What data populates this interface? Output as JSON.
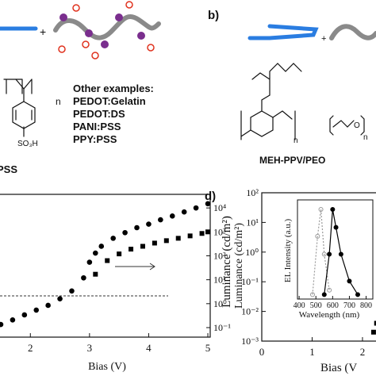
{
  "panel_a": {
    "n": "n",
    "substituent": "SO₃H",
    "name": "PSS",
    "examples_title": "Other examples:",
    "examples": [
      "PEDOT:Gelatin",
      "PEDOT:DS",
      "PANI:PSS",
      "PPY:PSS"
    ]
  },
  "panel_b": {
    "label": "b)",
    "n1": "n",
    "o1": "O",
    "n2": "n",
    "name": "MEH-PPV/PEO"
  },
  "panel_c": {
    "xlabel": "Bias (V)",
    "ylabel": "Luminance (cd/m²)",
    "xlim": [
      1.46,
      5.04
    ],
    "xticks": [
      2,
      3,
      4,
      5
    ],
    "ylim": [
      0.04,
      37000
    ],
    "log_y": true,
    "yticks": [
      {
        "value": 10000,
        "label": "10⁴"
      },
      {
        "value": 1000,
        "label": "10³"
      },
      {
        "value": 100,
        "label": "10²"
      },
      {
        "value": 10,
        "label": "10¹"
      },
      {
        "value": 1,
        "label": "10⁰"
      },
      {
        "value": 0.1,
        "label": "10⁻¹"
      }
    ],
    "series": [
      {
        "marker": "circle",
        "color": "#000000",
        "x": [
          1.5,
          1.7,
          1.9,
          2.1,
          2.3,
          2.5,
          2.7,
          2.9,
          3.0,
          3.1,
          3.2,
          3.4,
          3.6,
          3.8,
          4.0,
          4.2,
          4.4,
          4.6,
          4.8,
          5.0
        ],
        "values": [
          0.135,
          0.21,
          0.34,
          0.54,
          0.85,
          1.6,
          3.4,
          12,
          54,
          130,
          250,
          540,
          930,
          1500,
          2100,
          3200,
          4600,
          6800,
          10000,
          15000
        ]
      },
      {
        "marker": "square",
        "color": "#000000",
        "x": [
          3.1,
          3.3,
          3.5,
          3.7,
          3.9,
          4.1,
          4.3,
          4.5,
          4.7,
          4.9,
          5.0
        ],
        "values": [
          17,
          63,
          120,
          190,
          250,
          340,
          430,
          540,
          680,
          860,
          1000
        ]
      }
    ]
  },
  "panel_d": {
    "label": "d)",
    "xlabel": "Bias (V",
    "ylabel": "Luminance (cd/m²)",
    "xlim": [
      0,
      2.3
    ],
    "xticks": [
      0,
      1,
      2
    ],
    "ylim": [
      0.001,
      100
    ],
    "log_y": true,
    "yticks": [
      {
        "value": 100,
        "label": "10²"
      },
      {
        "value": 10,
        "label": "10¹"
      },
      {
        "value": 1,
        "label": "10⁰"
      },
      {
        "value": 0.1,
        "label": "10⁻¹"
      },
      {
        "value": 0.01,
        "label": "10⁻²"
      },
      {
        "value": 0.001,
        "label": "10⁻³"
      }
    ],
    "series": [
      {
        "marker": "square",
        "color": "#000000",
        "x": [
          2.22,
          2.28
        ],
        "values": [
          0.002,
          0.004
        ]
      }
    ],
    "inset": {
      "xlabel": "Wavelength (nm)",
      "ylabel": "EL Intensity (a.u.)",
      "xlim": [
        390,
        840
      ],
      "xticks": [
        400,
        500,
        600,
        700,
        800
      ],
      "series": [
        {
          "color": "#999999",
          "x": [
            480,
            510,
            530,
            550,
            580
          ],
          "values": [
            0.05,
            0.7,
            1.0,
            0.5,
            0.1
          ]
        },
        {
          "color": "#000000",
          "x": [
            550,
            580,
            600,
            620,
            650,
            700,
            750
          ],
          "values": [
            0.05,
            0.5,
            1.0,
            0.8,
            0.5,
            0.2,
            0.05
          ]
        }
      ]
    }
  }
}
